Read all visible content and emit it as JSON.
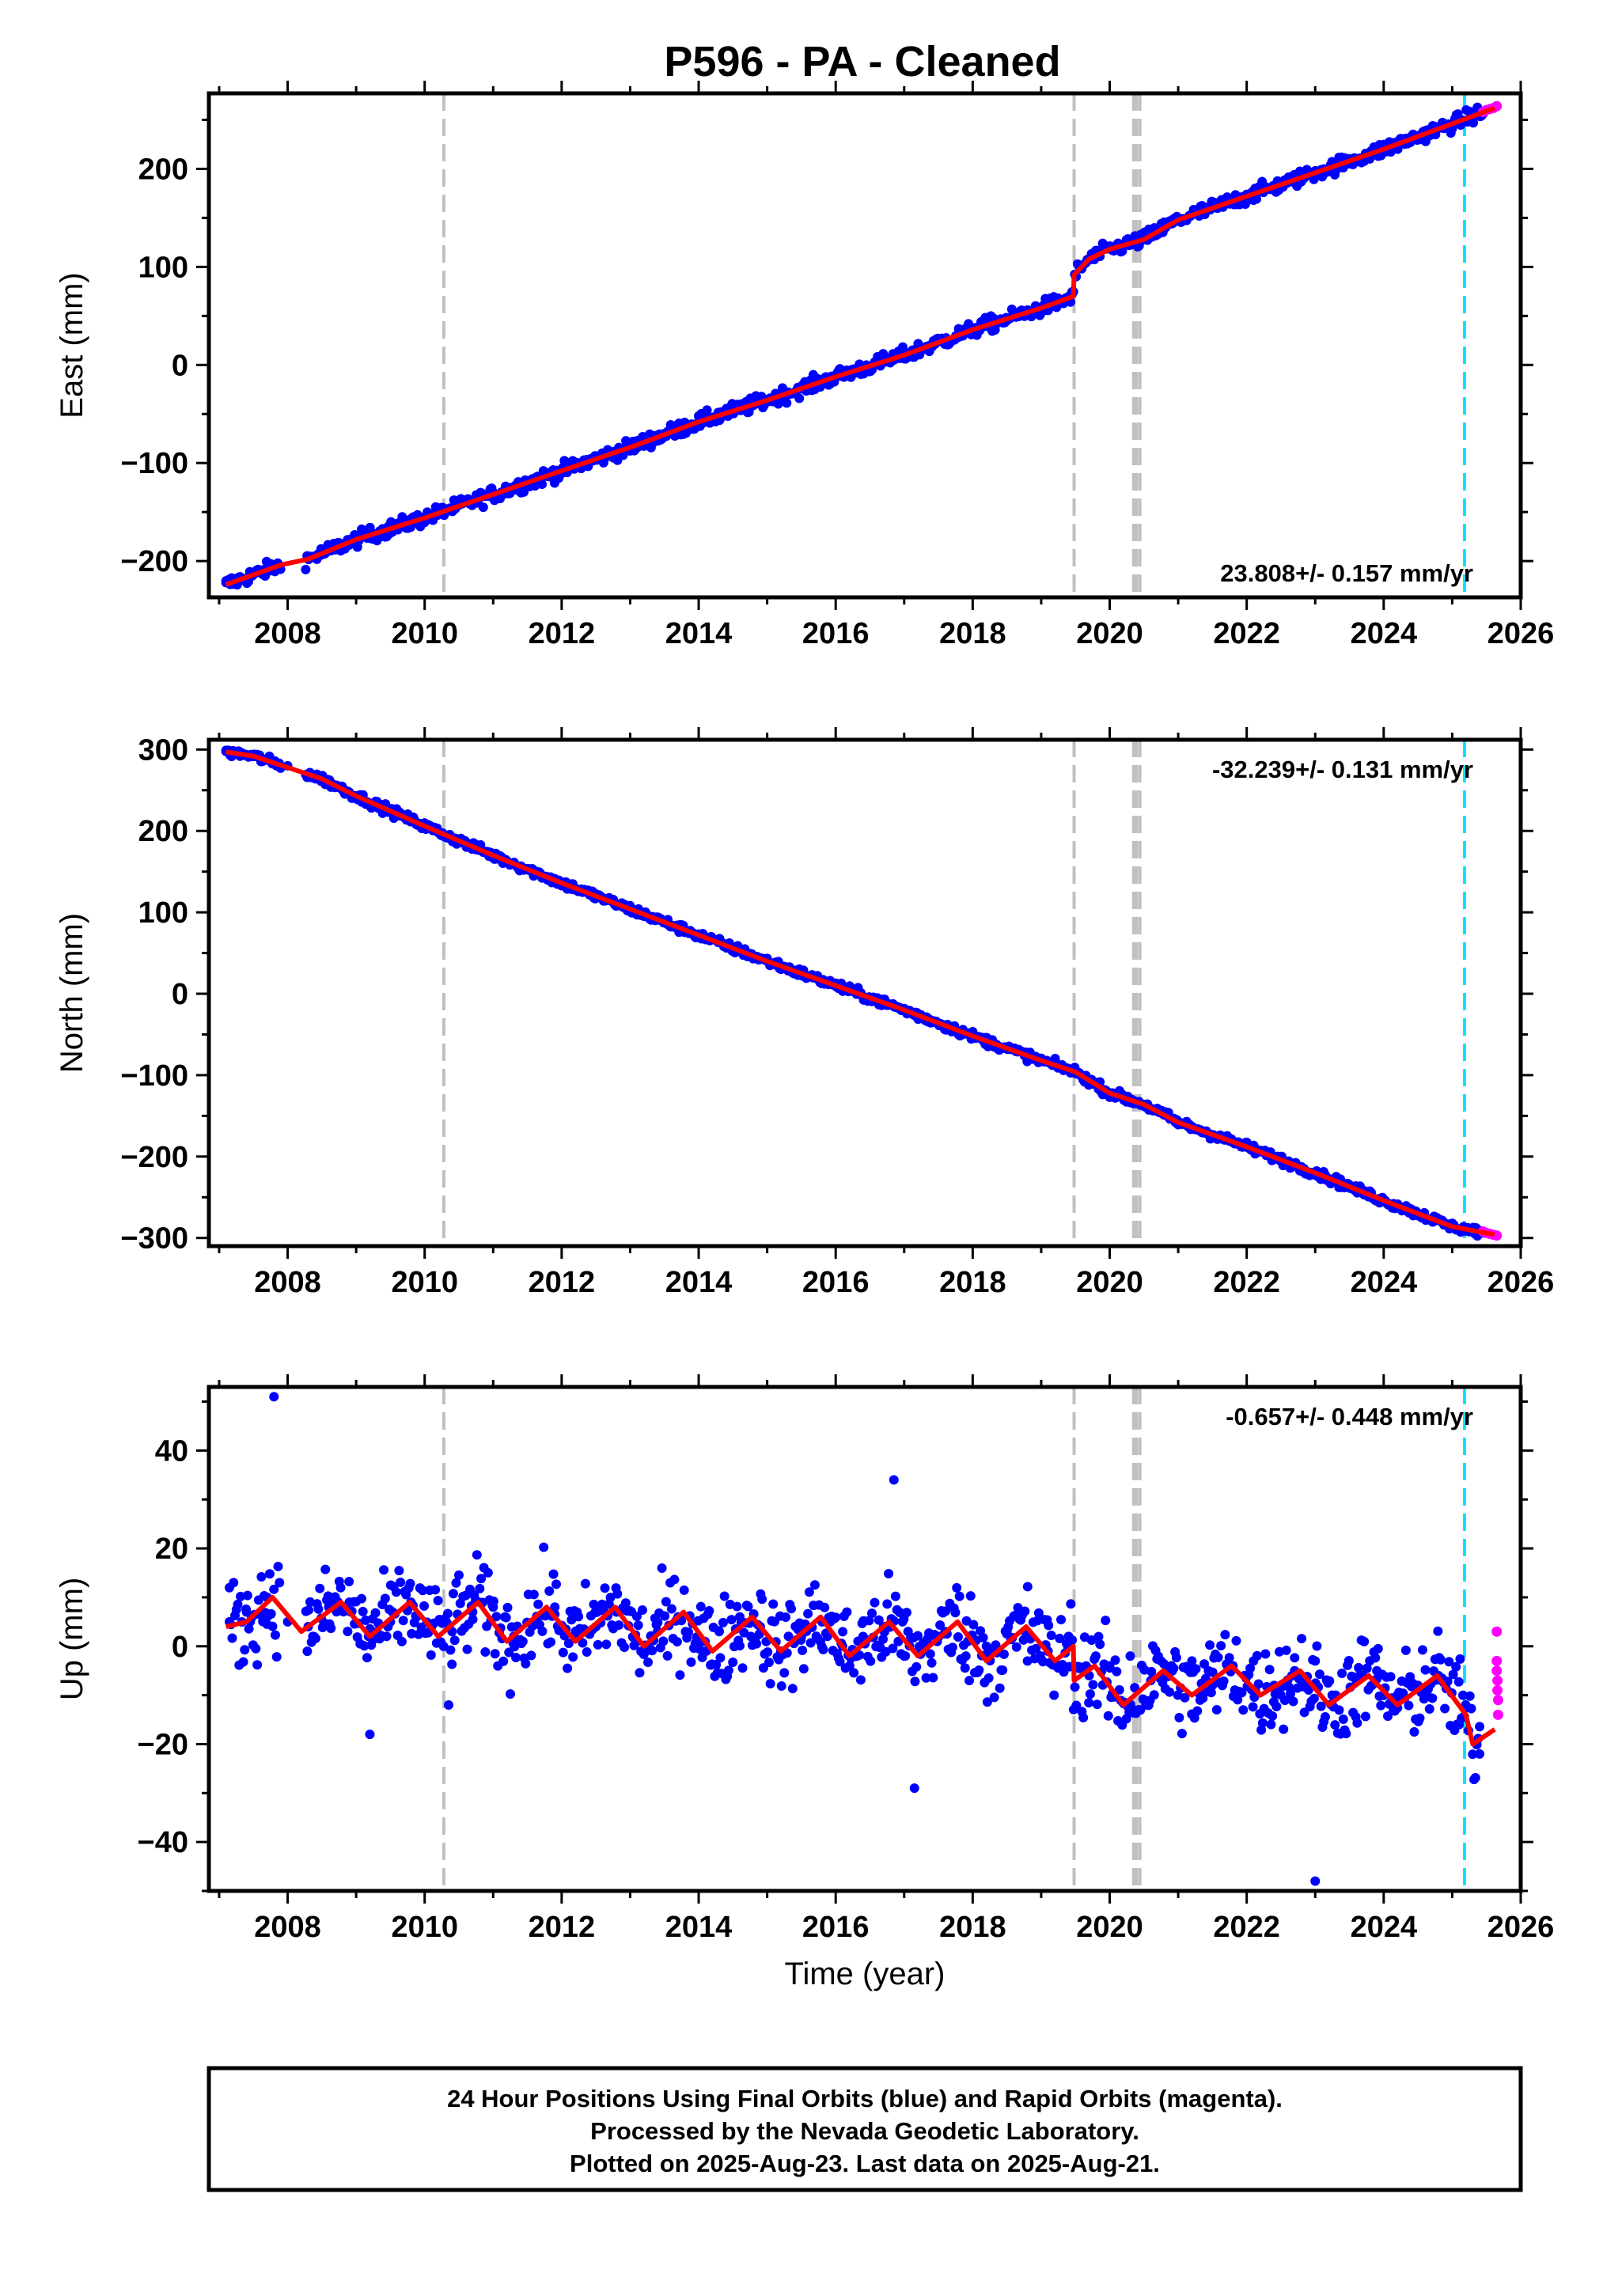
{
  "title": "P596  - PA - Cleaned",
  "chart_data": [
    {
      "type": "scatter",
      "ylabel": "East (mm)",
      "xlim": [
        2006.85,
        2026.0
      ],
      "ylim": [
        -237,
        277
      ],
      "xticks": [
        2008,
        2010,
        2012,
        2014,
        2016,
        2018,
        2020,
        2022,
        2024,
        2026
      ],
      "yticks": [
        -200,
        -100,
        0,
        100,
        200
      ],
      "rate_text": "23.808+/- 0.157 mm/yr",
      "rate_loc": "bottom-right",
      "series": [
        {
          "color": "#0000ff",
          "kind": "daily",
          "x": [
            2007.1,
            2007.5,
            2008.3,
            2009.0,
            2010.0,
            2010.3,
            2011.0,
            2012.0,
            2013.0,
            2014.0,
            2015.0,
            2016.0,
            2017.0,
            2018.0,
            2018.8,
            2019.45,
            2019.55,
            2020.0,
            2020.5,
            2021.0,
            2022.0,
            2023.0,
            2024.0,
            2025.0,
            2025.45
          ],
          "y": [
            -222,
            -212,
            -198,
            -178,
            -158,
            -150,
            -134,
            -108,
            -84,
            -58,
            -36,
            -12,
            10,
            36,
            56,
            72,
            102,
            120,
            128,
            147,
            172,
            196,
            221,
            246,
            256
          ]
        },
        {
          "color": "#ff00ff",
          "kind": "rapid",
          "x": [
            2025.45,
            2025.5,
            2025.55,
            2025.6,
            2025.65
          ],
          "y": [
            258,
            260,
            261,
            262,
            264
          ]
        }
      ],
      "model": {
        "color": "#ff0000",
        "x": [
          2007.1,
          2007.5,
          2007.9,
          2008.3,
          2009.0,
          2010.0,
          2011.0,
          2012.0,
          2013.0,
          2014.0,
          2015.0,
          2016.0,
          2017.0,
          2018.0,
          2019.0,
          2019.47,
          2019.48,
          2019.7,
          2020.0,
          2020.5,
          2021.0,
          2022.0,
          2023.0,
          2024.0,
          2025.0,
          2025.62
        ],
        "y": [
          -224,
          -214,
          -204,
          -198,
          -178,
          -156,
          -132,
          -108,
          -84,
          -58,
          -36,
          -12,
          10,
          36,
          58,
          70,
          92,
          108,
          118,
          128,
          148,
          172,
          196,
          220,
          246,
          262
        ]
      },
      "vlines_gray": [
        2010.28,
        2019.48,
        2020.35,
        2020.39,
        2020.44
      ],
      "vlines_cyan": [
        2025.18
      ]
    },
    {
      "type": "scatter",
      "ylabel": "North (mm)",
      "xlim": [
        2006.85,
        2026.0
      ],
      "ylim": [
        -310,
        312
      ],
      "xticks": [
        2008,
        2010,
        2012,
        2014,
        2016,
        2018,
        2020,
        2022,
        2024,
        2026
      ],
      "yticks": [
        -300,
        -200,
        -100,
        0,
        100,
        200,
        300
      ],
      "rate_text": "-32.239+/- 0.131 mm/yr",
      "rate_loc": "top-right",
      "series": [
        {
          "color": "#0000ff",
          "kind": "daily",
          "x": [
            2007.1,
            2007.5,
            2008.0,
            2008.5,
            2009.0,
            2010.0,
            2011.0,
            2012.0,
            2013.0,
            2014.0,
            2015.0,
            2016.0,
            2017.0,
            2018.0,
            2019.0,
            2019.5,
            2020.0,
            2020.5,
            2021.0,
            2022.0,
            2023.0,
            2024.0,
            2025.0,
            2025.45
          ],
          "y": [
            299,
            292,
            280,
            264,
            243,
            207,
            170,
            136,
            104,
            72,
            40,
            10,
            -20,
            -52,
            -82,
            -96,
            -122,
            -136,
            -158,
            -188,
            -220,
            -254,
            -286,
            -292
          ]
        },
        {
          "color": "#ff00ff",
          "kind": "rapid",
          "x": [
            2025.45,
            2025.5,
            2025.55,
            2025.6,
            2025.65
          ],
          "y": [
            -292,
            -294,
            -295,
            -296,
            -297
          ]
        }
      ],
      "model": {
        "color": "#ff0000",
        "x": [
          2007.1,
          2007.5,
          2008.0,
          2008.5,
          2009.0,
          2010.0,
          2011.0,
          2012.0,
          2013.0,
          2014.0,
          2015.0,
          2016.0,
          2017.0,
          2018.0,
          2019.0,
          2019.5,
          2020.0,
          2020.5,
          2021.0,
          2022.0,
          2023.0,
          2024.0,
          2025.0,
          2025.62
        ],
        "y": [
          297,
          292,
          278,
          264,
          243,
          206,
          170,
          136,
          104,
          72,
          40,
          10,
          -20,
          -52,
          -82,
          -96,
          -122,
          -136,
          -158,
          -188,
          -220,
          -254,
          -286,
          -296
        ]
      },
      "vlines_gray": [
        2010.28,
        2019.48,
        2020.35,
        2020.39,
        2020.44
      ],
      "vlines_cyan": [
        2025.18
      ]
    },
    {
      "type": "scatter",
      "ylabel": "Up (mm)",
      "xlabel": "Time (year)",
      "xlim": [
        2006.85,
        2026.0
      ],
      "ylim": [
        -50,
        53
      ],
      "xticks": [
        2008,
        2010,
        2012,
        2014,
        2016,
        2018,
        2020,
        2022,
        2024,
        2026
      ],
      "yticks": [
        -40,
        -20,
        0,
        20,
        40
      ],
      "rate_text": "-0.657+/- 0.448 mm/yr",
      "rate_loc": "top-right",
      "series": [
        {
          "color": "#0000ff",
          "kind": "daily",
          "x": [
            2007.15,
            2007.4,
            2007.7,
            2008.0,
            2008.3,
            2008.6,
            2008.9,
            2009.2,
            2009.5,
            2009.8,
            2010.1,
            2010.4,
            2010.7,
            2011.0,
            2011.3,
            2011.6,
            2011.9,
            2012.2,
            2012.5,
            2012.8,
            2013.1,
            2013.4,
            2013.7,
            2014.0,
            2014.3,
            2014.6,
            2014.9,
            2015.2,
            2015.5,
            2015.8,
            2016.1,
            2016.4,
            2016.7,
            2017.0,
            2017.3,
            2017.6,
            2017.9,
            2018.2,
            2018.5,
            2018.8,
            2019.1,
            2019.4,
            2019.7,
            2020.0,
            2020.3,
            2020.6,
            2020.9,
            2021.2,
            2021.5,
            2021.8,
            2022.1,
            2022.4,
            2022.7,
            2023.0,
            2023.3,
            2023.6,
            2023.9,
            2024.2,
            2024.5,
            2024.8,
            2025.1,
            2025.4,
            2007.8,
            2009.2,
            2010.35,
            2016.85,
            2017.15,
            2023.0
          ],
          "y": [
            5,
            7,
            10,
            5,
            4,
            8,
            9,
            3,
            5,
            9,
            4,
            3,
            7,
            8,
            2,
            5,
            8,
            2,
            4,
            7,
            1,
            3,
            6,
            1,
            3,
            6,
            4,
            -1,
            2,
            5,
            0,
            2,
            4,
            -2,
            0,
            3,
            -2,
            0,
            3,
            -3,
            -1,
            2,
            -6,
            -4,
            -2,
            -7,
            -4,
            -3,
            -8,
            -4,
            -3,
            -8,
            -5,
            -3,
            -10,
            -7,
            -5,
            -10,
            -8,
            -6,
            -16,
            -22,
            51,
            -18,
            -12,
            34,
            -29,
            -48
          ]
        },
        {
          "color": "#ff00ff",
          "kind": "rapid",
          "x": [
            2025.65,
            2025.65,
            2025.65,
            2025.66,
            2025.66,
            2025.67,
            2025.67
          ],
          "y": [
            3,
            -3,
            -5,
            -7,
            -9,
            -11,
            -14
          ]
        }
      ],
      "model": {
        "color": "#ff0000",
        "x": [
          2007.1,
          2007.4,
          2007.78,
          2008.2,
          2008.78,
          2009.2,
          2009.78,
          2010.2,
          2010.78,
          2011.2,
          2011.78,
          2012.2,
          2012.78,
          2013.2,
          2013.78,
          2014.2,
          2014.78,
          2015.2,
          2015.78,
          2016.2,
          2016.78,
          2017.2,
          2017.78,
          2018.2,
          2018.78,
          2019.2,
          2019.47,
          2019.48,
          2019.78,
          2020.2,
          2020.78,
          2021.2,
          2021.78,
          2022.2,
          2022.78,
          2023.2,
          2023.78,
          2024.2,
          2024.78,
          2025.2,
          2025.3,
          2025.62
        ],
        "y": [
          4,
          5,
          10,
          3,
          9,
          2,
          9,
          2,
          9,
          1,
          8,
          1,
          8,
          0,
          7,
          -1,
          6,
          -1,
          6,
          -2,
          5,
          -2,
          5,
          -3,
          4,
          -3,
          0,
          -7,
          -4,
          -12,
          -5,
          -10,
          -4,
          -10,
          -5,
          -12,
          -6,
          -12,
          -6,
          -14,
          -20,
          -17
        ]
      },
      "vlines_gray": [
        2010.28,
        2019.48,
        2020.35,
        2020.39,
        2020.44
      ],
      "vlines_cyan": [
        2025.18
      ]
    }
  ],
  "footer": {
    "line1": "24 Hour Positions Using Final Orbits (blue) and Rapid Orbits (magenta).",
    "line2": "Processed by the Nevada Geodetic Laboratory.",
    "line3": "Plotted on 2025-Aug-23. Last data on 2025-Aug-21."
  }
}
